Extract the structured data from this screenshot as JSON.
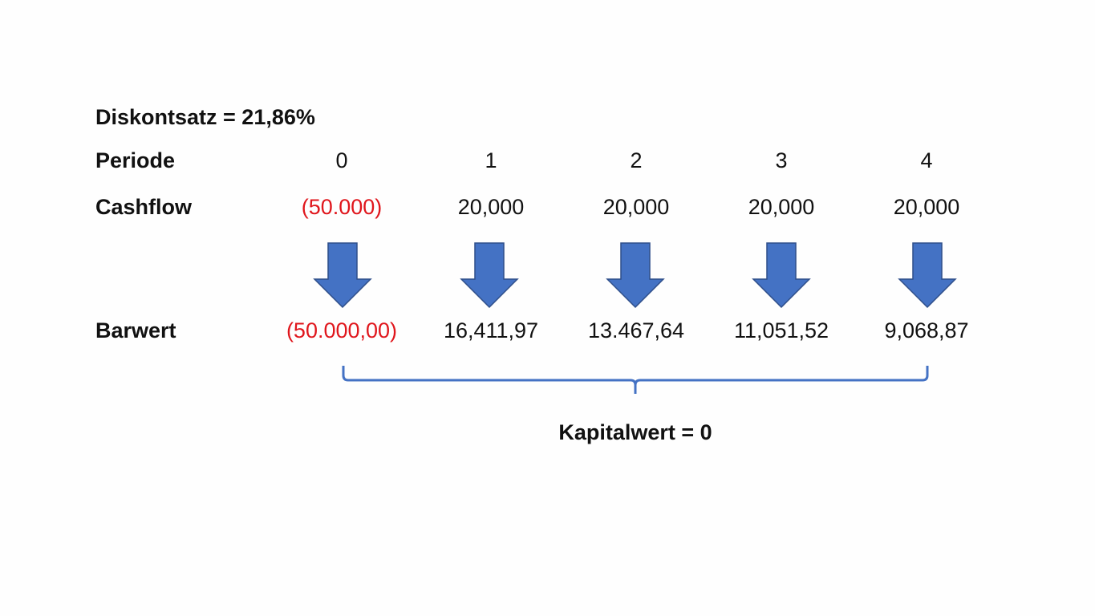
{
  "header": {
    "title": "Diskontsatz = 21,86%"
  },
  "rows": {
    "period": {
      "label": "Periode",
      "cells": [
        "0",
        "1",
        "2",
        "3",
        "4"
      ]
    },
    "cashflow": {
      "label": "Cashflow",
      "cells": [
        "(50.000)",
        "20,000",
        "20,000",
        "20,000",
        "20,000"
      ]
    },
    "present_value": {
      "label": "Barwert",
      "cells": [
        "(50.000,00)",
        "16,411,97",
        "13.467,64",
        "11,051,52",
        "9,068,87"
      ]
    }
  },
  "result": "Kapitalwert = 0"
}
